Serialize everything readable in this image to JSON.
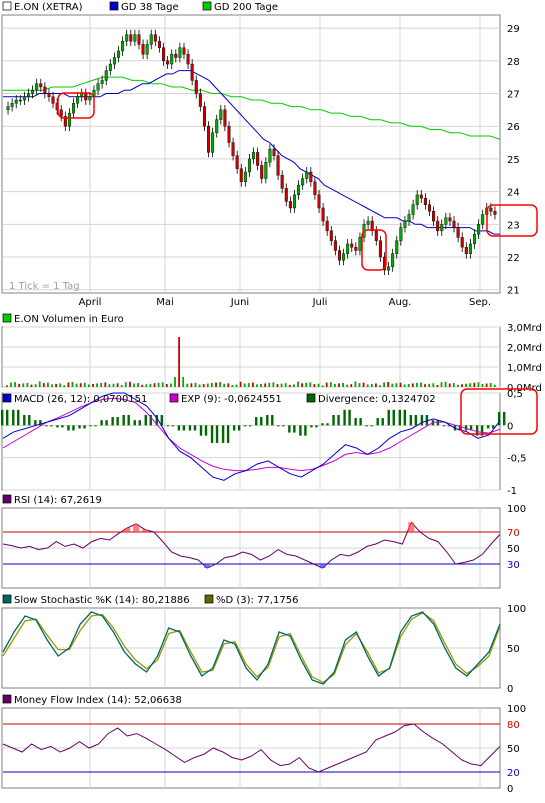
{
  "chart_data": [
    {
      "panel": "price",
      "type": "candlestick",
      "legend": [
        {
          "label": "E.ON (XETRA)",
          "color": "#ffffff"
        },
        {
          "label": "GD 38 Tage",
          "color": "#0000cc"
        },
        {
          "label": "GD 200 Tage",
          "color": "#00cc00"
        }
      ],
      "yticks": [
        "29",
        "28",
        "27",
        "26",
        "25",
        "24",
        "23",
        "22",
        "21"
      ],
      "ylim": [
        20.9,
        29.4
      ],
      "months": [
        "April",
        "Mai",
        "Juni",
        "Juli",
        "Aug.",
        "Sep."
      ],
      "note": "1 Tick = 1 Tag",
      "up_color": "#00aa00",
      "down_color": "#cc0000",
      "close": [
        26.6,
        26.7,
        26.8,
        26.8,
        26.9,
        27.0,
        27.1,
        27.3,
        27.2,
        27.0,
        26.9,
        26.7,
        26.5,
        26.3,
        26.0,
        26.4,
        26.7,
        26.9,
        27.0,
        26.8,
        26.9,
        27.1,
        27.3,
        27.4,
        27.7,
        27.9,
        28.1,
        28.3,
        28.6,
        28.8,
        28.6,
        28.8,
        28.5,
        28.2,
        28.5,
        28.8,
        28.6,
        28.4,
        28.0,
        27.9,
        28.2,
        28.1,
        28.4,
        28.2,
        27.9,
        27.4,
        27.0,
        26.6,
        26.0,
        25.2,
        25.8,
        26.2,
        26.5,
        26.0,
        25.5,
        25.1,
        24.7,
        24.3,
        24.6,
        25.0,
        25.2,
        24.8,
        24.4,
        24.9,
        25.3,
        25.1,
        24.5,
        24.1,
        23.7,
        23.5,
        23.9,
        24.2,
        24.4,
        24.6,
        24.3,
        23.9,
        23.5,
        23.1,
        22.8,
        22.5,
        22.2,
        21.9,
        22.1,
        22.4,
        22.3,
        22.2,
        22.6,
        23.0,
        23.1,
        22.8,
        22.5,
        22.0,
        21.6,
        21.7,
        22.1,
        22.5,
        22.9,
        23.1,
        23.3,
        23.6,
        23.9,
        23.8,
        23.6,
        23.4,
        23.1,
        22.8,
        23.0,
        23.2,
        23.1,
        22.9,
        22.6,
        22.3,
        22.1,
        22.4,
        22.7,
        23.0,
        23.3,
        23.5,
        23.4,
        23.3
      ],
      "ma38": [
        26.9,
        26.9,
        26.9,
        26.9,
        26.9,
        26.9,
        27.0,
        27.0,
        27.0,
        27.0,
        27.0,
        26.9,
        26.9,
        26.9,
        26.9,
        26.9,
        26.9,
        27.0,
        27.0,
        27.0,
        27.1,
        27.1,
        27.2,
        27.3,
        27.3,
        27.4,
        27.5,
        27.6,
        27.6,
        27.7,
        27.7,
        27.7,
        27.6,
        27.5,
        27.4,
        27.2,
        27.0,
        26.8,
        26.6,
        26.4,
        26.2,
        26.0,
        25.8,
        25.6,
        25.5,
        25.3,
        25.1,
        25.0,
        24.9,
        24.7,
        24.6,
        24.5,
        24.4,
        24.2,
        24.1,
        24.0,
        23.9,
        23.8,
        23.7,
        23.6,
        23.5,
        23.4,
        23.3,
        23.2,
        23.2,
        23.2,
        23.1,
        23.1,
        23.0,
        23.0,
        22.9,
        22.9,
        22.9,
        22.9,
        22.9,
        22.9,
        22.9,
        22.9,
        22.8,
        22.8,
        22.8,
        22.7,
        22.7
      ],
      "ma200": [
        27.1,
        27.1,
        27.1,
        27.1,
        27.1,
        27.2,
        27.2,
        27.2,
        27.3,
        27.4,
        27.5,
        27.5,
        27.5,
        27.4,
        27.4,
        27.3,
        27.3,
        27.2,
        27.2,
        27.1,
        27.1,
        27.0,
        27.0,
        26.9,
        26.9,
        26.8,
        26.8,
        26.7,
        26.7,
        26.6,
        26.6,
        26.5,
        26.5,
        26.4,
        26.4,
        26.3,
        26.3,
        26.2,
        26.2,
        26.1,
        26.1,
        26.0,
        26.0,
        25.9,
        25.9,
        25.8,
        25.8,
        25.7,
        25.7,
        25.7,
        25.6
      ],
      "annotations": "red boxes"
    },
    {
      "panel": "volume",
      "type": "bar",
      "legend": [
        {
          "label": "E.ON Volumen in Euro",
          "color": "#00cc00"
        }
      ],
      "yticks": [
        "3,0Mrd",
        "2,0Mrd",
        "1,0Mrd",
        "0,0Mrd"
      ],
      "ylim": [
        0,
        3.0
      ],
      "spike": 2.5
    },
    {
      "panel": "macd",
      "type": "line",
      "legend": [
        {
          "label": "MACD (26, 12): 0,0700151",
          "color": "#0000cc"
        },
        {
          "label": "EXP (9): -0,0624551",
          "color": "#cc00cc"
        },
        {
          "label": "Divergence: 0,1324702",
          "color": "#006600"
        }
      ],
      "yticks": [
        "0,5",
        "0",
        "-0,5",
        "-1"
      ],
      "ylim": [
        -1,
        0.5
      ],
      "macd": [
        -0.2,
        -0.1,
        -0.05,
        0.0,
        0.05,
        0.1,
        0.15,
        0.25,
        0.35,
        0.45,
        0.5,
        0.5,
        0.4,
        0.3,
        0.1,
        -0.2,
        -0.4,
        -0.5,
        -0.65,
        -0.8,
        -0.85,
        -0.75,
        -0.7,
        -0.6,
        -0.55,
        -0.65,
        -0.75,
        -0.8,
        -0.7,
        -0.6,
        -0.45,
        -0.3,
        -0.35,
        -0.45,
        -0.35,
        -0.2,
        -0.1,
        -0.05,
        0.05,
        0.1,
        0.05,
        -0.05,
        -0.1,
        -0.2,
        -0.15,
        0.07
      ],
      "signal": [
        -0.35,
        -0.25,
        -0.15,
        -0.05,
        0.05,
        0.12,
        0.2,
        0.28,
        0.35,
        0.4,
        0.42,
        0.4,
        0.35,
        0.2,
        0.0,
        -0.2,
        -0.35,
        -0.45,
        -0.55,
        -0.63,
        -0.68,
        -0.7,
        -0.7,
        -0.68,
        -0.65,
        -0.65,
        -0.68,
        -0.7,
        -0.68,
        -0.62,
        -0.55,
        -0.45,
        -0.42,
        -0.45,
        -0.42,
        -0.35,
        -0.25,
        -0.15,
        -0.05,
        0.05,
        0.05,
        0.0,
        -0.05,
        -0.1,
        -0.12,
        -0.06
      ]
    },
    {
      "panel": "rsi",
      "type": "line",
      "legend": [
        {
          "label": "RSI (14): 67,2619",
          "color": "#660066"
        }
      ],
      "yticks": [
        "100",
        "70",
        "50",
        "30"
      ],
      "ylim": [
        0,
        100
      ],
      "levels": [
        70,
        30
      ],
      "values": [
        55,
        53,
        50,
        52,
        48,
        50,
        58,
        52,
        55,
        50,
        58,
        62,
        60,
        68,
        75,
        80,
        73,
        70,
        58,
        45,
        40,
        38,
        35,
        25,
        30,
        38,
        40,
        45,
        42,
        35,
        40,
        48,
        42,
        40,
        35,
        30,
        25,
        35,
        42,
        40,
        45,
        52,
        55,
        60,
        58,
        55,
        82,
        70,
        62,
        58,
        45,
        30,
        32,
        35,
        42,
        55,
        67
      ]
    },
    {
      "panel": "stochastic",
      "type": "line",
      "legend": [
        {
          "label": "Slow Stochastic %K (14): 80,21886",
          "color": "#006666"
        },
        {
          "label": "%D (3): 77,1756",
          "color": "#666600"
        }
      ],
      "yticks": [
        "100",
        "50",
        "0"
      ],
      "ylim": [
        0,
        100
      ],
      "k": [
        45,
        70,
        90,
        85,
        60,
        40,
        50,
        80,
        95,
        90,
        70,
        45,
        30,
        20,
        40,
        75,
        70,
        40,
        15,
        25,
        60,
        55,
        25,
        10,
        30,
        70,
        65,
        35,
        10,
        5,
        20,
        60,
        70,
        40,
        15,
        25,
        70,
        90,
        95,
        80,
        50,
        25,
        15,
        30,
        45,
        80
      ],
      "d": [
        40,
        62,
        84,
        86,
        66,
        48,
        48,
        72,
        90,
        92,
        75,
        52,
        35,
        24,
        35,
        68,
        72,
        45,
        20,
        22,
        55,
        58,
        30,
        14,
        26,
        64,
        68,
        40,
        14,
        7,
        17,
        54,
        68,
        45,
        19,
        24,
        64,
        86,
        94,
        84,
        56,
        30,
        18,
        27,
        40,
        77
      ]
    },
    {
      "panel": "mfi",
      "type": "line",
      "legend": [
        {
          "label": "Money Flow Index (14): 52,06638",
          "color": "#660066"
        }
      ],
      "yticks": [
        "100",
        "80",
        "50",
        "20",
        "0"
      ],
      "ylim": [
        0,
        100
      ],
      "levels": [
        80,
        20
      ],
      "values": [
        55,
        50,
        45,
        55,
        48,
        52,
        45,
        50,
        58,
        50,
        55,
        68,
        75,
        65,
        68,
        62,
        55,
        48,
        40,
        32,
        38,
        42,
        50,
        45,
        38,
        35,
        40,
        48,
        35,
        28,
        30,
        38,
        25,
        20,
        25,
        30,
        35,
        40,
        45,
        60,
        65,
        70,
        78,
        80,
        70,
        62,
        55,
        45,
        35,
        30,
        28,
        40,
        52
      ]
    }
  ]
}
